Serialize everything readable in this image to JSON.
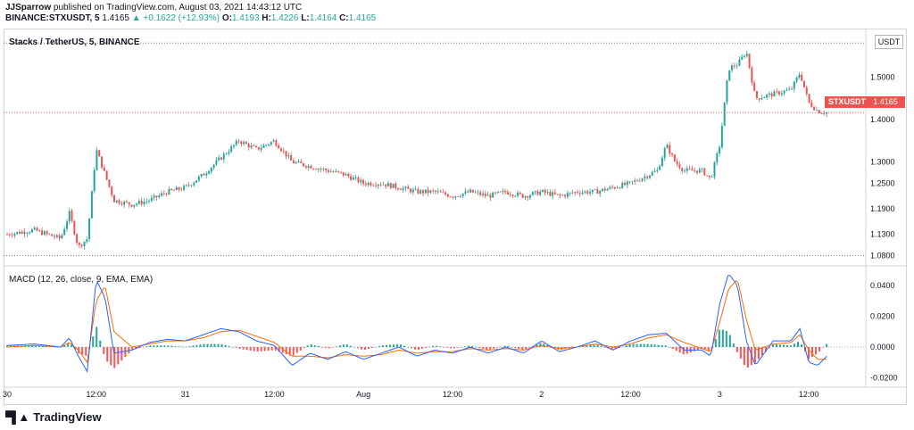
{
  "header": {
    "line1": {
      "user": "JJSparrow",
      "text": " published on TradingView.com, August 03, 2021 14:43:12 UTC"
    },
    "line2": {
      "symbol": "BINANCE:STXUSDT, 5",
      "price": "1.4165",
      "change": "▲ +0.1622 (+12.93%)",
      "o_label": "O:",
      "o": "1.4193",
      "h_label": "H:",
      "h": "1.4226",
      "l_label": "L:",
      "l": "1.4164",
      "c_label": "C:",
      "c": "1.4165"
    }
  },
  "chart_title": "Stacks / TetherUS, 5, BINANCE",
  "currency_label": "USDT",
  "price_marker": {
    "symbol": "STXUSDT",
    "value": "1.4165"
  },
  "macd_title": "MACD (12, 26, close, 9, EMA, EMA)",
  "logo_text": "TradingView",
  "colors": {
    "up": "#26a69a",
    "down": "#ef5350",
    "macd": "#2962ff",
    "signal": "#ff6d00",
    "hist_up": "#26a69a",
    "hist_down": "#ff5252"
  },
  "chart_data": [
    {
      "type": "candlestick",
      "title": "Stacks / TetherUS, 5, BINANCE",
      "ylim": [
        1.06,
        1.61
      ],
      "y_ticks": [
        "1.5000",
        "1.4000",
        "1.3000",
        "1.2500",
        "1.1900",
        "1.1300",
        "1.0800"
      ],
      "x_ticks": [
        "30",
        "12:00",
        "31",
        "12:00",
        "Aug",
        "12:00",
        "2",
        "12:00",
        "3",
        "12:00"
      ],
      "x_range": [
        0,
        96
      ],
      "x_tick_positions": [
        0,
        10,
        20,
        30,
        40,
        50,
        60,
        70,
        80,
        90
      ],
      "reference_lines": [
        1.58,
        1.08
      ],
      "last_price": 1.4165,
      "close_path": [
        [
          0,
          1.13
        ],
        [
          3,
          1.14
        ],
        [
          6,
          1.12
        ],
        [
          7,
          1.18
        ],
        [
          8,
          1.1
        ],
        [
          9,
          1.12
        ],
        [
          10,
          1.33
        ],
        [
          12,
          1.21
        ],
        [
          14,
          1.2
        ],
        [
          16,
          1.21
        ],
        [
          18,
          1.23
        ],
        [
          20,
          1.24
        ],
        [
          22,
          1.27
        ],
        [
          24,
          1.31
        ],
        [
          26,
          1.35
        ],
        [
          28,
          1.33
        ],
        [
          30,
          1.35
        ],
        [
          32,
          1.3
        ],
        [
          34,
          1.29
        ],
        [
          36,
          1.28
        ],
        [
          38,
          1.27
        ],
        [
          40,
          1.25
        ],
        [
          42,
          1.25
        ],
        [
          44,
          1.24
        ],
        [
          46,
          1.23
        ],
        [
          48,
          1.23
        ],
        [
          50,
          1.22
        ],
        [
          52,
          1.23
        ],
        [
          54,
          1.22
        ],
        [
          56,
          1.23
        ],
        [
          58,
          1.22
        ],
        [
          60,
          1.23
        ],
        [
          62,
          1.22
        ],
        [
          64,
          1.23
        ],
        [
          66,
          1.23
        ],
        [
          68,
          1.24
        ],
        [
          70,
          1.25
        ],
        [
          72,
          1.27
        ],
        [
          73,
          1.28
        ],
        [
          74,
          1.34
        ],
        [
          75,
          1.3
        ],
        [
          76,
          1.28
        ],
        [
          78,
          1.28
        ],
        [
          79,
          1.26
        ],
        [
          80,
          1.34
        ],
        [
          81,
          1.52
        ],
        [
          82,
          1.53
        ],
        [
          83,
          1.56
        ],
        [
          84,
          1.45
        ],
        [
          86,
          1.46
        ],
        [
          88,
          1.47
        ],
        [
          89,
          1.51
        ],
        [
          90,
          1.44
        ],
        [
          91,
          1.42
        ],
        [
          92,
          1.4165
        ]
      ]
    },
    {
      "type": "line",
      "title": "MACD (12, 26, close, 9, EMA, EMA)",
      "ylim": [
        -0.025,
        0.05
      ],
      "y_ticks": [
        "0.0400",
        "0.0200",
        "0.0000",
        "-0.0200"
      ],
      "series": [
        {
          "name": "MACD",
          "points": [
            [
              0,
              0.001
            ],
            [
              3,
              0.002
            ],
            [
              6,
              0.0
            ],
            [
              7,
              0.006
            ],
            [
              8,
              -0.006
            ],
            [
              9,
              -0.016
            ],
            [
              10,
              0.044
            ],
            [
              11,
              0.032
            ],
            [
              12,
              -0.004
            ],
            [
              14,
              -0.002
            ],
            [
              16,
              0.003
            ],
            [
              18,
              0.005
            ],
            [
              20,
              0.004
            ],
            [
              22,
              0.008
            ],
            [
              24,
              0.012
            ],
            [
              26,
              0.01
            ],
            [
              28,
              0.004
            ],
            [
              30,
              0.001
            ],
            [
              32,
              -0.012
            ],
            [
              34,
              -0.004
            ],
            [
              36,
              -0.008
            ],
            [
              38,
              -0.003
            ],
            [
              40,
              -0.008
            ],
            [
              42,
              -0.004
            ],
            [
              44,
              0.0
            ],
            [
              46,
              -0.006
            ],
            [
              48,
              -0.002
            ],
            [
              50,
              -0.004
            ],
            [
              52,
              0.0
            ],
            [
              54,
              -0.004
            ],
            [
              56,
              0.0
            ],
            [
              58,
              -0.004
            ],
            [
              60,
              0.004
            ],
            [
              62,
              -0.003
            ],
            [
              64,
              0.0
            ],
            [
              66,
              0.004
            ],
            [
              68,
              -0.002
            ],
            [
              70,
              0.004
            ],
            [
              72,
              0.008
            ],
            [
              74,
              0.009
            ],
            [
              76,
              -0.002
            ],
            [
              78,
              -0.002
            ],
            [
              79,
              -0.006
            ],
            [
              80,
              0.028
            ],
            [
              81,
              0.048
            ],
            [
              82,
              0.04
            ],
            [
              83,
              0.004
            ],
            [
              84,
              -0.012
            ],
            [
              86,
              0.004
            ],
            [
              88,
              0.004
            ],
            [
              89,
              0.012
            ],
            [
              90,
              -0.01
            ],
            [
              91,
              -0.012
            ],
            [
              92,
              -0.006
            ]
          ]
        },
        {
          "name": "Signal",
          "points": [
            [
              0,
              0.0
            ],
            [
              3,
              0.001
            ],
            [
              6,
              0.0
            ],
            [
              7,
              0.003
            ],
            [
              8,
              -0.002
            ],
            [
              9,
              -0.01
            ],
            [
              10,
              0.03
            ],
            [
              11,
              0.04
            ],
            [
              12,
              0.01
            ],
            [
              14,
              0.0
            ],
            [
              16,
              0.002
            ],
            [
              18,
              0.004
            ],
            [
              20,
              0.004
            ],
            [
              22,
              0.006
            ],
            [
              24,
              0.01
            ],
            [
              26,
              0.011
            ],
            [
              28,
              0.007
            ],
            [
              30,
              0.003
            ],
            [
              32,
              -0.006
            ],
            [
              34,
              -0.006
            ],
            [
              36,
              -0.007
            ],
            [
              38,
              -0.005
            ],
            [
              40,
              -0.006
            ],
            [
              42,
              -0.005
            ],
            [
              44,
              -0.002
            ],
            [
              46,
              -0.004
            ],
            [
              48,
              -0.003
            ],
            [
              50,
              -0.003
            ],
            [
              52,
              -0.001
            ],
            [
              54,
              -0.002
            ],
            [
              56,
              -0.001
            ],
            [
              58,
              -0.002
            ],
            [
              60,
              0.001
            ],
            [
              62,
              -0.001
            ],
            [
              64,
              0.0
            ],
            [
              66,
              0.002
            ],
            [
              68,
              0.0
            ],
            [
              70,
              0.002
            ],
            [
              72,
              0.006
            ],
            [
              74,
              0.008
            ],
            [
              76,
              0.003
            ],
            [
              78,
              -0.001
            ],
            [
              79,
              -0.003
            ],
            [
              80,
              0.016
            ],
            [
              81,
              0.038
            ],
            [
              82,
              0.044
            ],
            [
              83,
              0.018
            ],
            [
              84,
              -0.002
            ],
            [
              86,
              0.002
            ],
            [
              88,
              0.003
            ],
            [
              89,
              0.008
            ],
            [
              90,
              -0.002
            ],
            [
              91,
              -0.008
            ],
            [
              92,
              -0.008
            ]
          ]
        }
      ]
    }
  ]
}
